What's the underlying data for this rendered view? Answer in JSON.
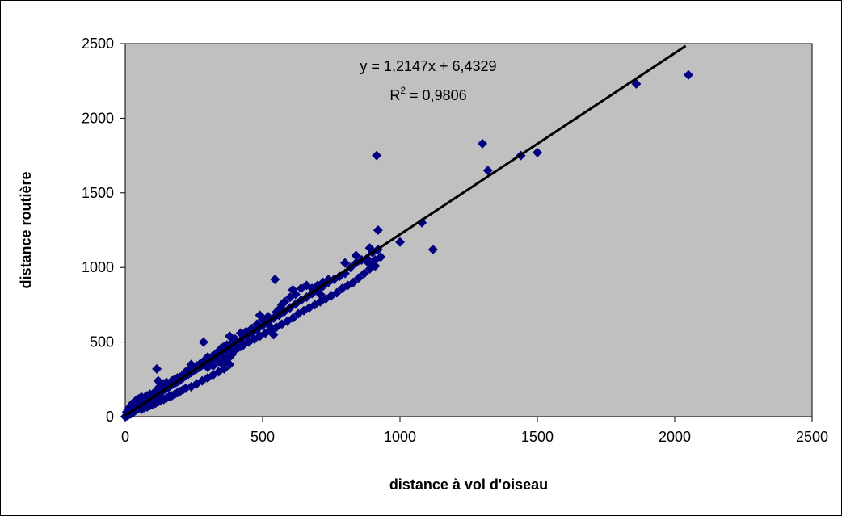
{
  "chart_data": {
    "type": "scatter",
    "title": "",
    "xlabel": "distance à vol d'oiseau",
    "ylabel": "distance routière",
    "xlim": [
      0,
      2500
    ],
    "ylim": [
      0,
      2500
    ],
    "xticks": [
      "0",
      "500",
      "1000",
      "1500",
      "2000",
      "2500"
    ],
    "yticks": [
      "0",
      "500",
      "1000",
      "1500",
      "2000",
      "2500"
    ],
    "grid": false,
    "legend": "none",
    "plot_background": "#c0c0c0",
    "marker_color": "#000080",
    "marker": "diamond",
    "trendline": {
      "type": "linear",
      "slope": 1.2147,
      "intercept": 6.4329,
      "color": "#000000",
      "equation_label": "y = 1,2147x + 6,4329",
      "r2_prefix": "R",
      "r2_exponent": "2",
      "r2_suffix": " = 0,9806"
    },
    "series": [
      {
        "points": [
          [
            0,
            0
          ],
          [
            3,
            5
          ],
          [
            5,
            10
          ],
          [
            8,
            6
          ],
          [
            10,
            15
          ],
          [
            12,
            12
          ],
          [
            15,
            20
          ],
          [
            18,
            25
          ],
          [
            20,
            18
          ],
          [
            22,
            30
          ],
          [
            25,
            35
          ],
          [
            28,
            28
          ],
          [
            30,
            40
          ],
          [
            32,
            45
          ],
          [
            35,
            38
          ],
          [
            38,
            50
          ],
          [
            40,
            55
          ],
          [
            42,
            48
          ],
          [
            45,
            60
          ],
          [
            48,
            65
          ],
          [
            50,
            58
          ],
          [
            52,
            62
          ],
          [
            55,
            70
          ],
          [
            58,
            75
          ],
          [
            60,
            68
          ],
          [
            62,
            80
          ],
          [
            65,
            85
          ],
          [
            68,
            78
          ],
          [
            70,
            90
          ],
          [
            72,
            95
          ],
          [
            75,
            88
          ],
          [
            78,
            100
          ],
          [
            80,
            105
          ],
          [
            82,
            98
          ],
          [
            85,
            110
          ],
          [
            88,
            115
          ],
          [
            90,
            108
          ],
          [
            92,
            120
          ],
          [
            95,
            118
          ],
          [
            98,
            125
          ],
          [
            100,
            122
          ],
          [
            105,
            135
          ],
          [
            108,
            130
          ],
          [
            110,
            140
          ],
          [
            112,
            138
          ],
          [
            115,
            150
          ],
          [
            118,
            145
          ],
          [
            120,
            160
          ],
          [
            122,
            155
          ],
          [
            125,
            165
          ],
          [
            128,
            160
          ],
          [
            130,
            175
          ],
          [
            135,
            170
          ],
          [
            140,
            180
          ],
          [
            145,
            185
          ],
          [
            150,
            190
          ],
          [
            155,
            195
          ],
          [
            160,
            200
          ],
          [
            165,
            210
          ],
          [
            170,
            215
          ],
          [
            175,
            220
          ],
          [
            180,
            225
          ],
          [
            185,
            230
          ],
          [
            190,
            235
          ],
          [
            195,
            240
          ],
          [
            200,
            245
          ],
          [
            205,
            255
          ],
          [
            210,
            260
          ],
          [
            215,
            270
          ],
          [
            220,
            275
          ],
          [
            230,
            285
          ],
          [
            240,
            295
          ],
          [
            250,
            310
          ],
          [
            260,
            320
          ],
          [
            270,
            330
          ],
          [
            280,
            345
          ],
          [
            290,
            355
          ],
          [
            300,
            370
          ],
          [
            310,
            380
          ],
          [
            320,
            395
          ],
          [
            330,
            405
          ],
          [
            340,
            415
          ],
          [
            350,
            425
          ],
          [
            360,
            440
          ],
          [
            370,
            450
          ],
          [
            380,
            465
          ],
          [
            390,
            470
          ],
          [
            400,
            480
          ],
          [
            420,
            510
          ],
          [
            440,
            540
          ],
          [
            460,
            560
          ],
          [
            480,
            585
          ],
          [
            500,
            610
          ],
          [
            520,
            635
          ],
          [
            540,
            660
          ],
          [
            560,
            680
          ],
          [
            580,
            705
          ],
          [
            600,
            730
          ],
          [
            620,
            755
          ],
          [
            640,
            780
          ],
          [
            660,
            800
          ],
          [
            680,
            825
          ],
          [
            700,
            850
          ],
          [
            720,
            875
          ],
          [
            740,
            900
          ],
          [
            760,
            920
          ],
          [
            800,
            960
          ],
          [
            820,
            1000
          ],
          [
            840,
            1030
          ],
          [
            860,
            1050
          ],
          [
            880,
            1060
          ],
          [
            900,
            1100
          ],
          [
            920,
            1120
          ],
          [
            5,
            30
          ],
          [
            10,
            45
          ],
          [
            15,
            60
          ],
          [
            20,
            70
          ],
          [
            25,
            85
          ],
          [
            30,
            95
          ],
          [
            35,
            100
          ],
          [
            40,
            110
          ],
          [
            45,
            115
          ],
          [
            50,
            120
          ],
          [
            55,
            125
          ],
          [
            60,
            130
          ],
          [
            65,
            120
          ],
          [
            70,
            128
          ],
          [
            80,
            140
          ],
          [
            90,
            150
          ],
          [
            110,
            170
          ],
          [
            115,
            320
          ],
          [
            120,
            240
          ],
          [
            125,
            200
          ],
          [
            130,
            210
          ],
          [
            140,
            220
          ],
          [
            150,
            230
          ],
          [
            160,
            220
          ],
          [
            170,
            240
          ],
          [
            180,
            250
          ],
          [
            190,
            260
          ],
          [
            200,
            265
          ],
          [
            210,
            275
          ],
          [
            220,
            300
          ],
          [
            230,
            310
          ],
          [
            240,
            350
          ],
          [
            250,
            330
          ],
          [
            260,
            340
          ],
          [
            270,
            350
          ],
          [
            280,
            360
          ],
          [
            285,
            500
          ],
          [
            290,
            380
          ],
          [
            300,
            400
          ],
          [
            320,
            410
          ],
          [
            330,
            420
          ],
          [
            340,
            440
          ],
          [
            350,
            460
          ],
          [
            360,
            470
          ],
          [
            370,
            480
          ],
          [
            380,
            540
          ],
          [
            390,
            500
          ],
          [
            400,
            520
          ],
          [
            420,
            560
          ],
          [
            440,
            570
          ],
          [
            460,
            590
          ],
          [
            480,
            620
          ],
          [
            490,
            680
          ],
          [
            500,
            650
          ],
          [
            520,
            670
          ],
          [
            530,
            600
          ],
          [
            540,
            550
          ],
          [
            545,
            920
          ],
          [
            550,
            700
          ],
          [
            560,
            720
          ],
          [
            570,
            750
          ],
          [
            580,
            770
          ],
          [
            600,
            800
          ],
          [
            610,
            850
          ],
          [
            620,
            820
          ],
          [
            640,
            860
          ],
          [
            660,
            880
          ],
          [
            680,
            860
          ],
          [
            700,
            880
          ],
          [
            710,
            820
          ],
          [
            720,
            900
          ],
          [
            740,
            920
          ],
          [
            750,
            810
          ],
          [
            780,
            940
          ],
          [
            800,
            1030
          ],
          [
            840,
            1080
          ],
          [
            860,
            1050
          ],
          [
            880,
            1040
          ],
          [
            890,
            1130
          ],
          [
            900,
            1020
          ],
          [
            910,
            1050
          ],
          [
            915,
            1750
          ],
          [
            920,
            1250
          ],
          [
            930,
            1070
          ],
          [
            1000,
            1170
          ],
          [
            1080,
            1300
          ],
          [
            1120,
            1120
          ],
          [
            1300,
            1830
          ],
          [
            1320,
            1650
          ],
          [
            1440,
            1750
          ],
          [
            1500,
            1770
          ],
          [
            1860,
            2230
          ],
          [
            2050,
            2290
          ],
          [
            60,
            50
          ],
          [
            70,
            60
          ],
          [
            80,
            65
          ],
          [
            90,
            75
          ],
          [
            100,
            80
          ],
          [
            110,
            90
          ],
          [
            120,
            100
          ],
          [
            130,
            110
          ],
          [
            140,
            115
          ],
          [
            150,
            125
          ],
          [
            160,
            135
          ],
          [
            170,
            140
          ],
          [
            180,
            150
          ],
          [
            190,
            160
          ],
          [
            200,
            170
          ],
          [
            210,
            180
          ],
          [
            220,
            190
          ],
          [
            240,
            200
          ],
          [
            260,
            220
          ],
          [
            280,
            240
          ],
          [
            300,
            260
          ],
          [
            320,
            280
          ],
          [
            340,
            300
          ],
          [
            360,
            320
          ],
          [
            380,
            350
          ],
          [
            300,
            330
          ],
          [
            310,
            350
          ],
          [
            320,
            340
          ],
          [
            340,
            370
          ],
          [
            350,
            360
          ],
          [
            360,
            380
          ],
          [
            370,
            390
          ],
          [
            380,
            400
          ],
          [
            390,
            420
          ],
          [
            400,
            450
          ],
          [
            410,
            460
          ],
          [
            420,
            470
          ],
          [
            430,
            480
          ],
          [
            450,
            500
          ],
          [
            470,
            520
          ],
          [
            490,
            540
          ],
          [
            510,
            560
          ],
          [
            530,
            580
          ],
          [
            550,
            600
          ],
          [
            570,
            620
          ],
          [
            590,
            640
          ],
          [
            610,
            660
          ],
          [
            630,
            690
          ],
          [
            650,
            710
          ],
          [
            670,
            730
          ],
          [
            690,
            750
          ],
          [
            710,
            770
          ],
          [
            730,
            790
          ],
          [
            750,
            810
          ],
          [
            770,
            830
          ],
          [
            790,
            860
          ],
          [
            810,
            880
          ],
          [
            830,
            900
          ],
          [
            850,
            930
          ],
          [
            870,
            960
          ],
          [
            890,
            990
          ],
          [
            910,
            1010
          ]
        ]
      }
    ]
  }
}
